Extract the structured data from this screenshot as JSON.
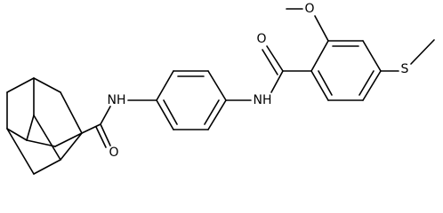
{
  "atoms": {
    "carbonyl_o_left": "O",
    "nh_left": "NH",
    "nh_right": "NH",
    "carbonyl_o_right": "O",
    "methoxy_o": "O",
    "sulfur": "S"
  }
}
